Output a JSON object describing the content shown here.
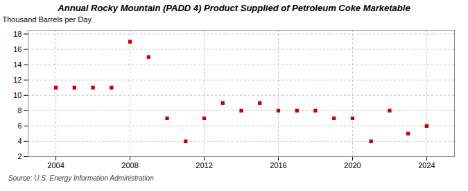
{
  "chart_data": {
    "type": "scatter",
    "title": "Annual Rocky Mountain (PADD 4) Product Supplied of Petroleum Coke Marketable",
    "ylabel": "Thousand Barrels per Day",
    "source": "Source: U.S. Energy Information Administration",
    "x": [
      2004,
      2005,
      2006,
      2007,
      2008,
      2009,
      2010,
      2011,
      2012,
      2013,
      2014,
      2015,
      2016,
      2017,
      2018,
      2019,
      2020,
      2021,
      2022,
      2023,
      2024
    ],
    "values": [
      11,
      11,
      11,
      11,
      17,
      15,
      7,
      4,
      7,
      9,
      8,
      9,
      8,
      8,
      8,
      7,
      7,
      4,
      8,
      5,
      6
    ],
    "color": "#cc0000",
    "marker": "square",
    "xlim": [
      2002.5,
      2025.5
    ],
    "xticks": [
      2004,
      2008,
      2012,
      2016,
      2020,
      2024
    ],
    "ylim": [
      2,
      18.5
    ],
    "yticks": [
      2,
      4,
      6,
      8,
      10,
      12,
      14,
      16,
      18
    ],
    "grid": true
  }
}
